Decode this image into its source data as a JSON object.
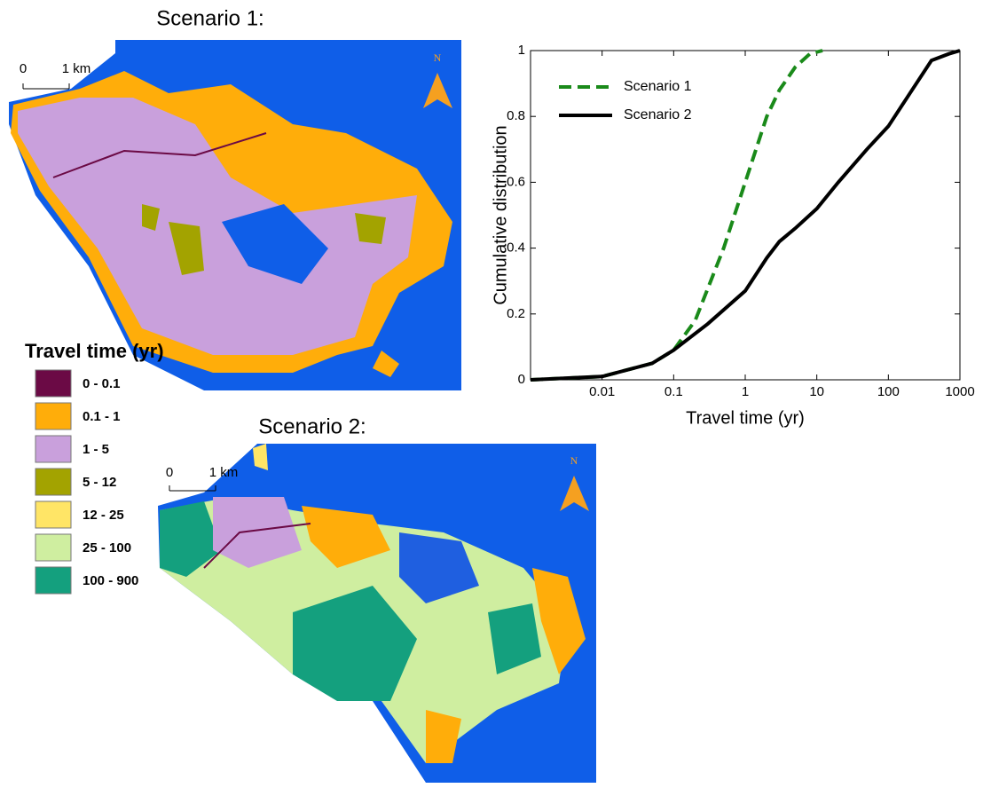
{
  "chart_data": {
    "type": "line",
    "xlabel": "Travel time (yr)",
    "ylabel": "Cumulative distribution",
    "xscale": "log",
    "xlim": [
      0.001,
      1000
    ],
    "xticks": [
      0.01,
      0.1,
      1,
      10,
      100,
      1000
    ],
    "ylim": [
      0,
      1
    ],
    "yticks": [
      0,
      0.2,
      0.4,
      0.6,
      0.8,
      1
    ],
    "legend": "upper left",
    "series": [
      {
        "name": "Scenario 1",
        "color": "#1a8a1a",
        "dash": true,
        "x": [
          0.001,
          0.01,
          0.05,
          0.1,
          0.2,
          0.5,
          1,
          2,
          3,
          5,
          8,
          12
        ],
        "values": [
          0,
          0.01,
          0.05,
          0.09,
          0.18,
          0.4,
          0.6,
          0.8,
          0.88,
          0.95,
          0.99,
          1
        ]
      },
      {
        "name": "Scenario 2",
        "color": "#000000",
        "dash": false,
        "x": [
          0.001,
          0.01,
          0.05,
          0.1,
          0.3,
          1,
          2,
          3,
          5,
          10,
          20,
          50,
          100,
          200,
          400,
          700,
          1000
        ],
        "values": [
          0,
          0.01,
          0.05,
          0.09,
          0.17,
          0.27,
          0.37,
          0.42,
          0.46,
          0.52,
          0.6,
          0.7,
          0.77,
          0.87,
          0.97,
          0.99,
          1
        ]
      }
    ]
  },
  "maps": [
    {
      "title": "Scenario 1:",
      "scale_start": "0",
      "scale_end": "1 km",
      "north": "N"
    },
    {
      "title": "Scenario 2:",
      "scale_start": "0",
      "scale_end": "1 km",
      "north": "N"
    }
  ],
  "legend": {
    "title": "Travel time (yr)",
    "items": [
      {
        "label": "0 - 0.1",
        "color": "#6b0a45"
      },
      {
        "label": "0.1 - 1",
        "color": "#ffad0a"
      },
      {
        "label": "1 - 5",
        "color": "#c9a0dc"
      },
      {
        "label": "5 - 12",
        "color": "#a3a300"
      },
      {
        "label": "12 - 25",
        "color": "#ffe566"
      },
      {
        "label": "25 - 100",
        "color": "#cfeea0"
      },
      {
        "label": "100 - 900",
        "color": "#14a07e"
      }
    ]
  }
}
